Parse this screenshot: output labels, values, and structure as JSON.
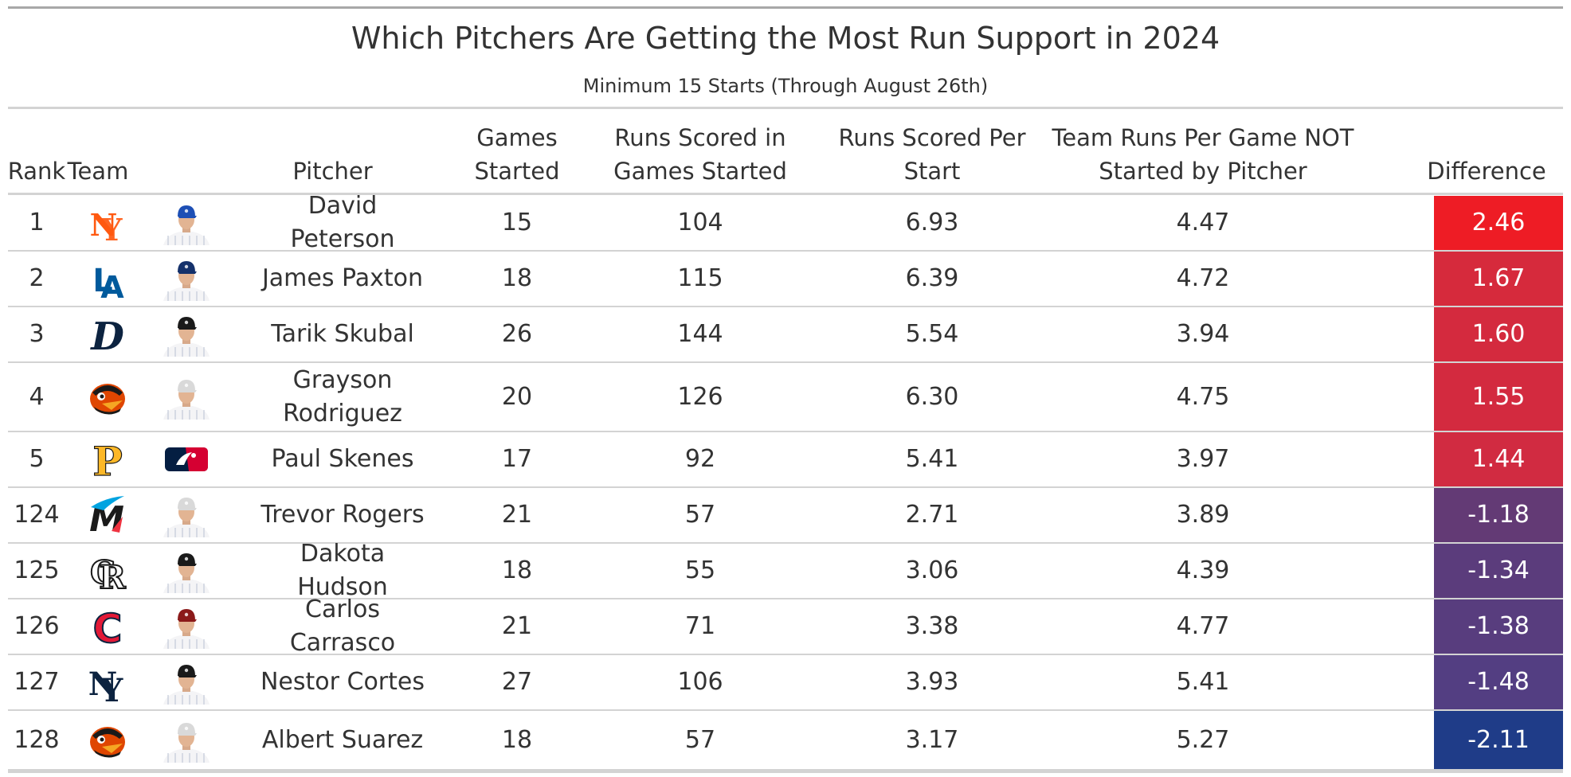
{
  "title": "Which Pitchers Are Getting the Most Run Support in 2024",
  "subtitle": "Minimum 15 Starts (Through August 26th)",
  "columns": {
    "rank": "Rank",
    "team": "Team",
    "pitcher": "Pitcher",
    "games_started": "Games Started",
    "runs_scored": "Runs Scored in Games Started",
    "runs_per_start": "Runs Scored Per Start",
    "team_runs_not_started": "Team Runs Per Game NOT Started by Pitcher",
    "difference": "Difference"
  },
  "rows": [
    {
      "rank": "1",
      "team_icon": "mets-logo-icon",
      "team_color": "#ff5910",
      "headshot_icon": "pitcher-headshot-icon",
      "cap_color": "#1d4fb5",
      "pitcher": "David Peterson",
      "games_started": "15",
      "runs_scored": "104",
      "runs_per_start": "6.93",
      "team_runs_not_started": "4.47",
      "difference": "2.46",
      "diff_color": "#ee1c25"
    },
    {
      "rank": "2",
      "team_icon": "dodgers-logo-icon",
      "team_color": "#005a9c",
      "headshot_icon": "pitcher-headshot-icon",
      "cap_color": "#14316b",
      "pitcher": "James Paxton",
      "games_started": "18",
      "runs_scored": "115",
      "runs_per_start": "6.39",
      "team_runs_not_started": "4.72",
      "difference": "1.67",
      "diff_color": "#d62a3c"
    },
    {
      "rank": "3",
      "team_icon": "tigers-logo-icon",
      "team_color": "#0c2340",
      "headshot_icon": "pitcher-headshot-icon",
      "cap_color": "#1a1a1a",
      "pitcher": "Tarik Skubal",
      "games_started": "26",
      "runs_scored": "144",
      "runs_per_start": "5.54",
      "team_runs_not_started": "3.94",
      "difference": "1.60",
      "diff_color": "#d42a3e"
    },
    {
      "rank": "4",
      "team_icon": "orioles-logo-icon",
      "team_color": "#df4601",
      "headshot_icon": "pitcher-headshot-icon",
      "cap_color": "#d9d9d9",
      "pitcher": "Grayson Rodriguez",
      "games_started": "20",
      "runs_scored": "126",
      "runs_per_start": "6.30",
      "team_runs_not_started": "4.75",
      "difference": "1.55",
      "diff_color": "#d32a3f"
    },
    {
      "rank": "5",
      "team_icon": "pirates-logo-icon",
      "team_color": "#fdb827",
      "headshot_icon": "mlb-logo-icon",
      "cap_color": "#041e42",
      "pitcher": "Paul Skenes",
      "games_started": "17",
      "runs_scored": "92",
      "runs_per_start": "5.41",
      "team_runs_not_started": "3.97",
      "difference": "1.44",
      "diff_color": "#d12b41"
    },
    {
      "rank": "124",
      "team_icon": "marlins-logo-icon",
      "team_color": "#00a3e0",
      "headshot_icon": "pitcher-headshot-icon",
      "cap_color": "#d9d9d9",
      "pitcher": "Trevor Rogers",
      "games_started": "21",
      "runs_scored": "57",
      "runs_per_start": "2.71",
      "team_runs_not_started": "3.89",
      "difference": "-1.18",
      "diff_color": "#633a75"
    },
    {
      "rank": "125",
      "team_icon": "rockies-logo-icon",
      "team_color": "#1a1a1a",
      "headshot_icon": "pitcher-headshot-icon",
      "cap_color": "#1a1a1a",
      "pitcher": "Dakota Hudson",
      "games_started": "18",
      "runs_scored": "55",
      "runs_per_start": "3.06",
      "team_runs_not_started": "4.39",
      "difference": "-1.34",
      "diff_color": "#5b3c7c"
    },
    {
      "rank": "126",
      "team_icon": "guardians-logo-icon",
      "team_color": "#e31937",
      "headshot_icon": "pitcher-headshot-icon",
      "cap_color": "#8b1a1a",
      "pitcher": "Carlos Carrasco",
      "games_started": "21",
      "runs_scored": "71",
      "runs_per_start": "3.38",
      "team_runs_not_started": "4.77",
      "difference": "-1.38",
      "diff_color": "#583d7e"
    },
    {
      "rank": "127",
      "team_icon": "yankees-logo-icon",
      "team_color": "#0c2340",
      "headshot_icon": "pitcher-headshot-icon",
      "cap_color": "#1a1a1a",
      "pitcher": "Nestor Cortes",
      "games_started": "27",
      "runs_scored": "106",
      "runs_per_start": "3.93",
      "team_runs_not_started": "5.41",
      "difference": "-1.48",
      "diff_color": "#533e82"
    },
    {
      "rank": "128",
      "team_icon": "orioles-logo-icon",
      "team_color": "#df4601",
      "headshot_icon": "pitcher-headshot-icon",
      "cap_color": "#d9d9d9",
      "pitcher": "Albert Suarez",
      "games_started": "18",
      "runs_scored": "57",
      "runs_per_start": "3.17",
      "team_runs_not_started": "5.27",
      "difference": "-2.11",
      "diff_color": "#1f3c88"
    }
  ]
}
